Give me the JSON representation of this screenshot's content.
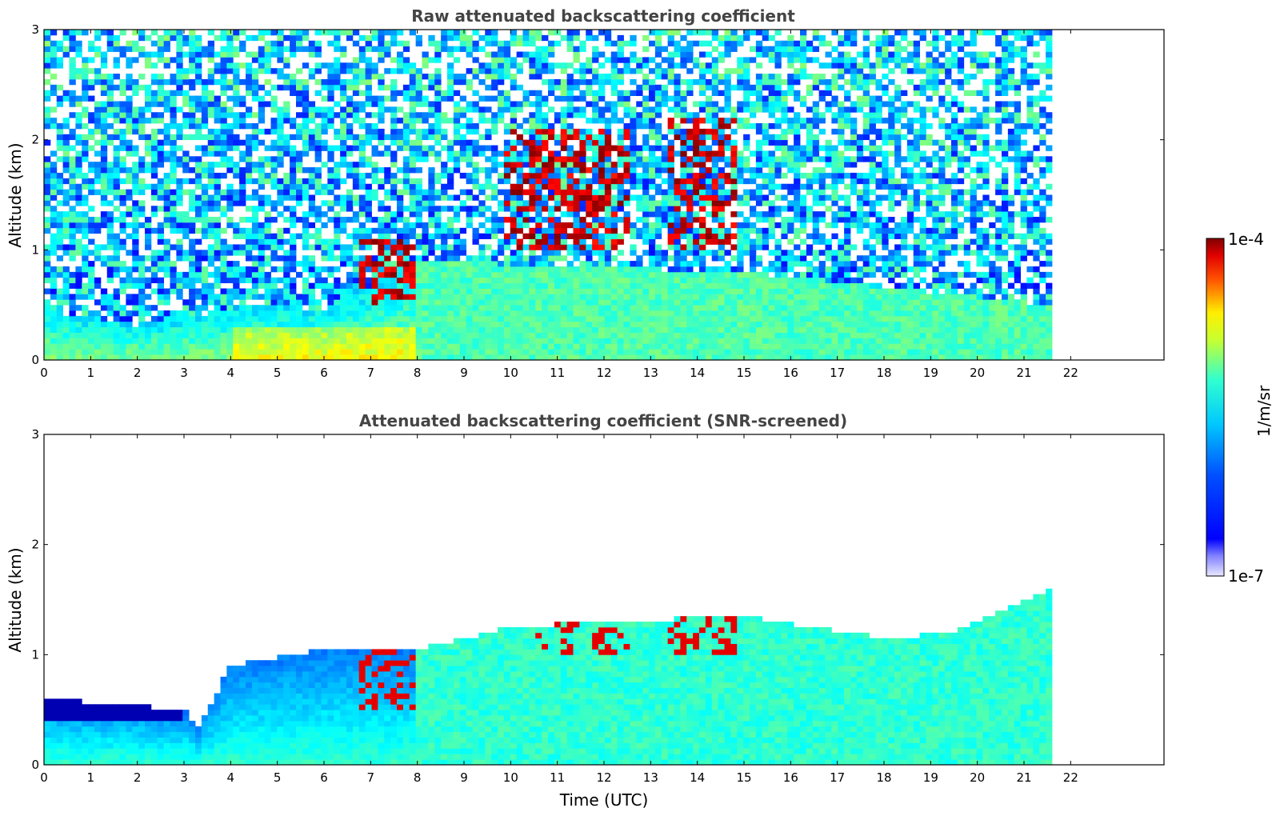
{
  "chart_data": [
    {
      "type": "heatmap",
      "title": "Raw attenuated backscattering coefficient",
      "xlabel": "",
      "ylabel": "Altitude (km)",
      "xlim": [
        0,
        24
      ],
      "ylim": [
        0,
        3
      ],
      "x_ticks": [
        0,
        1,
        2,
        3,
        4,
        5,
        6,
        7,
        8,
        9,
        10,
        11,
        12,
        13,
        14,
        15,
        16,
        17,
        18,
        19,
        20,
        21,
        22
      ],
      "y_ticks": [
        0,
        1,
        2,
        3
      ],
      "data_extent_x": [
        0,
        21.6
      ],
      "grid": false,
      "description_features": {
        "boundary_layer_top_km": [
          [
            0,
            0.45
          ],
          [
            2,
            0.32
          ],
          [
            4.5,
            0.5
          ],
          [
            6,
            0.45
          ],
          [
            7.5,
            0.8
          ],
          [
            8,
            0.9
          ],
          [
            15,
            0.8
          ],
          [
            21.6,
            0.5
          ]
        ],
        "cloud_layers": [
          {
            "x_range": [
              6.8,
              8.0
            ],
            "alt_range": [
              0.5,
              1.1
            ]
          },
          {
            "x_range": [
              9.8,
              12.5
            ],
            "alt_range": [
              1.0,
              2.1
            ]
          },
          {
            "x_range": [
              13.3,
              14.8
            ],
            "alt_range": [
              1.0,
              2.2
            ]
          }
        ]
      }
    },
    {
      "type": "heatmap",
      "title": "Attenuated backscattering coefficient (SNR-screened)",
      "xlabel": "Time (UTC)",
      "ylabel": "Altitude (km)",
      "xlim": [
        0,
        24
      ],
      "ylim": [
        0,
        3
      ],
      "x_ticks": [
        0,
        1,
        2,
        3,
        4,
        5,
        6,
        7,
        8,
        9,
        10,
        11,
        12,
        13,
        14,
        15,
        16,
        17,
        18,
        19,
        20,
        21,
        22
      ],
      "y_ticks": [
        0,
        1,
        2,
        3
      ],
      "data_extent_x": [
        0,
        21.6
      ],
      "grid": false,
      "description_features": {
        "screened_top_km": [
          [
            0,
            0.6
          ],
          [
            3,
            0.5
          ],
          [
            3.3,
            0.35
          ],
          [
            4,
            0.9
          ],
          [
            6,
            1.05
          ],
          [
            8,
            1.05
          ],
          [
            10,
            1.25
          ],
          [
            12,
            1.3
          ],
          [
            15,
            1.35
          ],
          [
            18,
            1.15
          ],
          [
            19.5,
            1.2
          ],
          [
            21.6,
            1.6
          ]
        ]
      }
    }
  ],
  "colorbar": {
    "label": "1/m/sr",
    "max_label": "1e-4",
    "min_label": "1e-7",
    "colormap": "jet",
    "scale": "log"
  }
}
